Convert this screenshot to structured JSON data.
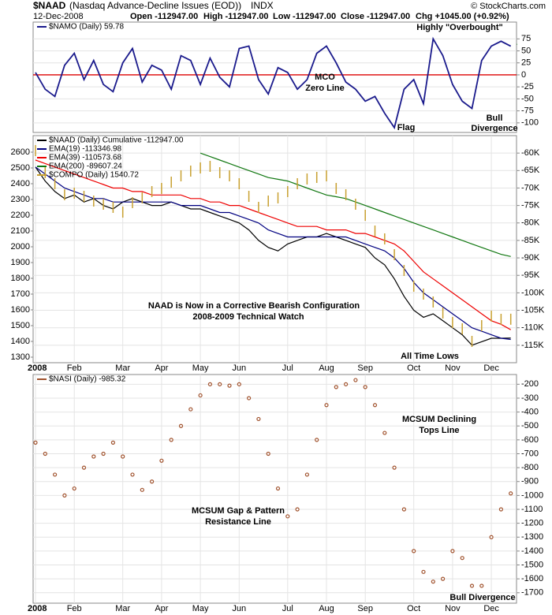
{
  "header": {
    "symbol": "$NAAD",
    "name": "(Nasdaq Advance-Decline Issues (EOD))",
    "exchange": "INDX",
    "date": "12-Dec-2008",
    "open": "Open -112947.00",
    "high": "High -112947.00",
    "low": "Low -112947.00",
    "close": "Close -112947.00",
    "change": "Chg +1045.00 (+0.92%)",
    "credit": "© StockCharts.com"
  },
  "chart_data": [
    {
      "type": "line",
      "ylim": [
        -120,
        110
      ],
      "yticks": [
        75,
        50,
        25,
        0,
        -25,
        -50,
        -75,
        -100
      ],
      "hline": 0,
      "hline_color": "#dd0000",
      "grid": true,
      "series": [
        {
          "name": "$NAMO (Daily) 59.78",
          "color": "#1a1a8c",
          "values": [
            5,
            -30,
            -45,
            20,
            45,
            -10,
            30,
            -20,
            -35,
            25,
            55,
            -15,
            20,
            10,
            -30,
            40,
            30,
            -20,
            35,
            -5,
            -25,
            55,
            60,
            -10,
            -40,
            15,
            5,
            -30,
            -10,
            45,
            60,
            25,
            -15,
            -30,
            -55,
            -45,
            -80,
            -110,
            -30,
            -10,
            -60,
            75,
            40,
            -20,
            -55,
            -70,
            30,
            60,
            70,
            59.78
          ]
        }
      ],
      "annotations": [
        {
          "text": [
            "Highly \"Overbought\""
          ],
          "color": "#e07000"
        },
        {
          "text": [
            "MCO",
            "Zero Line"
          ],
          "color": "#dd0000"
        },
        {
          "text": [
            "Flag"
          ],
          "color": "#1a8c1a"
        },
        {
          "text": [
            "Bull",
            "Divergence"
          ],
          "color": "#e07000"
        }
      ]
    },
    {
      "type": "line",
      "ylim": [
        -120000,
        -55000
      ],
      "yticks": [
        {
          "value": -60000,
          "label": "-60K"
        },
        {
          "value": -65000,
          "label": "-65K"
        },
        {
          "value": -70000,
          "label": "-70K"
        },
        {
          "value": -75000,
          "label": "-75K"
        },
        {
          "value": -80000,
          "label": "-80K"
        },
        {
          "value": -85000,
          "label": "-85K"
        },
        {
          "value": -90000,
          "label": "-90K"
        },
        {
          "value": -95000,
          "label": "-95K"
        },
        {
          "value": -100000,
          "label": "-100K"
        },
        {
          "value": -105000,
          "label": "-105K"
        },
        {
          "value": -110000,
          "label": "-110K"
        },
        {
          "value": -115000,
          "label": "-115K"
        }
      ],
      "y2lim": [
        1265,
        2705
      ],
      "y2ticks": [
        2600,
        2500,
        2400,
        2300,
        2200,
        2100,
        2000,
        1900,
        1800,
        1700,
        1600,
        1500,
        1400,
        1300
      ],
      "grid": true,
      "categories": [
        "2008",
        null,
        null,
        null,
        "Feb",
        null,
        null,
        null,
        null,
        "Mar",
        null,
        null,
        null,
        "Apr",
        null,
        null,
        null,
        "May",
        null,
        null,
        null,
        "Jun",
        null,
        null,
        null,
        null,
        "Jul",
        null,
        null,
        null,
        "Aug",
        null,
        null,
        null,
        "Sep",
        null,
        null,
        null,
        null,
        "Oct",
        null,
        null,
        null,
        "Nov",
        null,
        null,
        null,
        "Dec",
        null,
        null
      ],
      "series": [
        {
          "name": "$NAAD (Daily) Cumulative -112947.00",
          "color": "#000000",
          "values": [
            -64000,
            -68000,
            -71000,
            -73000,
            -72000,
            -74000,
            -73000,
            -75000,
            -76000,
            -74000,
            -73000,
            -74000,
            -75000,
            -75000,
            -74000,
            -75000,
            -76000,
            -76000,
            -77000,
            -78000,
            -79000,
            -80000,
            -82000,
            -85000,
            -87000,
            -88000,
            -86000,
            -85000,
            -84000,
            -84000,
            -83000,
            -84000,
            -85000,
            -86000,
            -87000,
            -90000,
            -92000,
            -96000,
            -101000,
            -105000,
            -107000,
            -106000,
            -108000,
            -110000,
            -112000,
            -115000,
            -114000,
            -113000,
            -113000,
            -112947
          ]
        },
        {
          "name": "EMA(19) -113346.98",
          "color": "#000080",
          "values": [
            -64000,
            -66000,
            -68000,
            -70000,
            -71000,
            -72000,
            -73000,
            -73000,
            -74000,
            -74000,
            -74000,
            -74000,
            -74000,
            -74000,
            -74000,
            -75000,
            -75000,
            -75000,
            -76000,
            -77000,
            -77000,
            -78000,
            -79000,
            -80000,
            -82000,
            -83000,
            -84000,
            -84000,
            -84000,
            -84000,
            -84000,
            -84000,
            -84000,
            -85000,
            -86000,
            -87000,
            -88000,
            -90000,
            -93000,
            -97000,
            -100000,
            -102000,
            -104000,
            -106000,
            -108000,
            -110000,
            -111000,
            -112000,
            -113000,
            -113346.98
          ]
        },
        {
          "name": "EMA(39) -110573.68",
          "color": "#ee0000",
          "values": [
            -62000,
            -63000,
            -64000,
            -65000,
            -66000,
            -67000,
            -68000,
            -69000,
            -70000,
            -70000,
            -71000,
            -71000,
            -72000,
            -72000,
            -72000,
            -72000,
            -73000,
            -73000,
            -74000,
            -74000,
            -75000,
            -75000,
            -76000,
            -77000,
            -78000,
            -79000,
            -80000,
            -81000,
            -81000,
            -81000,
            -82000,
            -82000,
            -82000,
            -83000,
            -83000,
            -84000,
            -85000,
            -86000,
            -88000,
            -91000,
            -94000,
            -96000,
            -98000,
            -100000,
            -102000,
            -104000,
            -106000,
            -108000,
            -109000,
            -110573.68
          ]
        },
        {
          "name": "EMA(200) -89607.24",
          "color": "#117711",
          "values": [
            null,
            null,
            null,
            null,
            null,
            null,
            null,
            null,
            null,
            null,
            null,
            null,
            null,
            null,
            null,
            null,
            null,
            -60000,
            -61000,
            -62000,
            -63000,
            -64000,
            -65000,
            -66000,
            -67000,
            -67500,
            -68000,
            -69000,
            -70000,
            -71000,
            -72000,
            -72500,
            -73000,
            -74000,
            -75000,
            -76000,
            -77000,
            -78000,
            -79000,
            -80000,
            -81000,
            -82000,
            -83000,
            -84000,
            -85000,
            -86000,
            -87000,
            -88000,
            -89000,
            -89607.24
          ]
        },
        {
          "name": "$COMPO (Daily) 1540.72",
          "color": "#c8a030",
          "axis": "y2",
          "style": "bars",
          "values": [
            2610,
            2470,
            2400,
            2330,
            2340,
            2320,
            2290,
            2270,
            2250,
            2220,
            2280,
            2310,
            2350,
            2370,
            2410,
            2450,
            2480,
            2500,
            2510,
            2470,
            2450,
            2400,
            2320,
            2250,
            2290,
            2310,
            2350,
            2400,
            2430,
            2440,
            2450,
            2370,
            2330,
            2270,
            2200,
            2100,
            2050,
            1950,
            1850,
            1750,
            1700,
            1650,
            1580,
            1520,
            1480,
            1400,
            1500,
            1560,
            1540,
            1540.72
          ]
        }
      ],
      "annotations": [
        {
          "text": [
            "NAAD is Now in a Corrective Bearish Configuration"
          ],
          "color": "#1a1acc"
        },
        {
          "text": [
            "2008-2009 Technical Watch"
          ],
          "color": "#888888"
        },
        {
          "text": [
            "All Time Lows"
          ],
          "color": "#660088"
        }
      ]
    },
    {
      "type": "dot",
      "ylim": [
        -1775,
        -130
      ],
      "yticks": [
        -200,
        -300,
        -400,
        -500,
        -600,
        -700,
        -800,
        -900,
        -1000,
        -1100,
        -1200,
        -1300,
        -1400,
        -1500,
        -1600,
        -1700
      ],
      "grid": true,
      "categories": [
        "2008",
        null,
        null,
        null,
        "Feb",
        null,
        null,
        null,
        null,
        "Mar",
        null,
        null,
        null,
        "Apr",
        null,
        null,
        null,
        "May",
        null,
        null,
        null,
        "Jun",
        null,
        null,
        null,
        null,
        "Jul",
        null,
        null,
        null,
        "Aug",
        null,
        null,
        null,
        "Sep",
        null,
        null,
        null,
        null,
        "Oct",
        null,
        null,
        null,
        "Nov",
        null,
        null,
        null,
        "Dec",
        null,
        null
      ],
      "series": [
        {
          "name": "$NASI (Daily) -985.32",
          "color": "#a0522d",
          "values": [
            -620,
            -700,
            -850,
            -1000,
            -950,
            -800,
            -720,
            -700,
            -620,
            -720,
            -850,
            -960,
            -900,
            -750,
            -600,
            -500,
            -380,
            -280,
            -200,
            -200,
            -210,
            -200,
            -300,
            -450,
            -700,
            -950,
            -1150,
            -1100,
            -850,
            -600,
            -350,
            -220,
            -200,
            -170,
            -220,
            -350,
            -550,
            -800,
            -1100,
            -1400,
            -1550,
            -1620,
            -1600,
            -1400,
            -1450,
            -1650,
            -1650,
            -1300,
            -1100,
            -985.32
          ]
        }
      ],
      "annotations": [
        {
          "text": [
            "MCSUM Declining",
            "Tops Line"
          ],
          "color": "#888888"
        },
        {
          "text": [
            "MCSUM Gap & Pattern",
            "Resistance Line"
          ],
          "color": "#1a1a99"
        },
        {
          "text": [
            "Bull Divergence"
          ],
          "color": "#e07000"
        }
      ]
    }
  ]
}
